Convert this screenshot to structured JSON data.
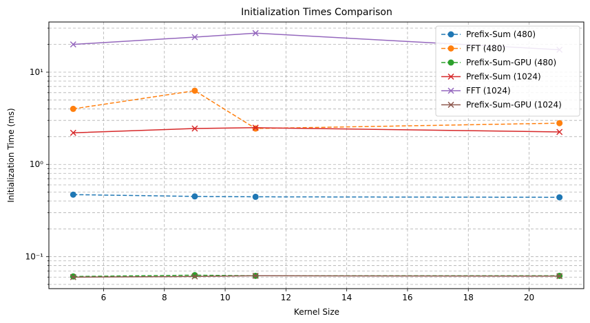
{
  "chart_data": {
    "type": "line",
    "title": "Initialization Times Comparison",
    "xlabel": "Kernel Size",
    "ylabel": "Initialization Time (ms)",
    "x": [
      5,
      9,
      11,
      21
    ],
    "xlim": [
      4.2,
      21.8
    ],
    "ylim": [
      0.045,
      35
    ],
    "yscale": "log",
    "grid": "on (major and minor, dashed)",
    "legend_position": "top-right",
    "x_ticks": [
      "6",
      "8",
      "10",
      "12",
      "14",
      "16",
      "18",
      "20"
    ],
    "y_ticks": [
      "10⁻¹",
      "10⁰",
      "10¹"
    ],
    "series": [
      {
        "name": "Prefix-Sum (480)",
        "values": [
          0.47,
          0.45,
          0.445,
          0.44
        ],
        "color": "#1f77b4",
        "dash": "dashed",
        "marker": "circle"
      },
      {
        "name": "FFT (480)",
        "values": [
          4.0,
          6.3,
          2.45,
          2.8
        ],
        "color": "#ff7f0e",
        "dash": "dashed",
        "marker": "circle"
      },
      {
        "name": "Prefix-Sum-GPU (480)",
        "values": [
          0.061,
          0.063,
          0.062,
          0.062
        ],
        "color": "#2ca02c",
        "dash": "dashed",
        "marker": "circle"
      },
      {
        "name": "Prefix-Sum (1024)",
        "values": [
          2.2,
          2.45,
          2.5,
          2.25
        ],
        "color": "#d62728",
        "dash": "solid",
        "marker": "x"
      },
      {
        "name": "FFT (1024)",
        "values": [
          20.0,
          24.0,
          26.5,
          17.5
        ],
        "color": "#9467bd",
        "dash": "solid",
        "marker": "x"
      },
      {
        "name": "Prefix-Sum-GPU (1024)",
        "values": [
          0.06,
          0.061,
          0.062,
          0.0615
        ],
        "color": "#8c564b",
        "dash": "solid",
        "marker": "x"
      }
    ]
  }
}
